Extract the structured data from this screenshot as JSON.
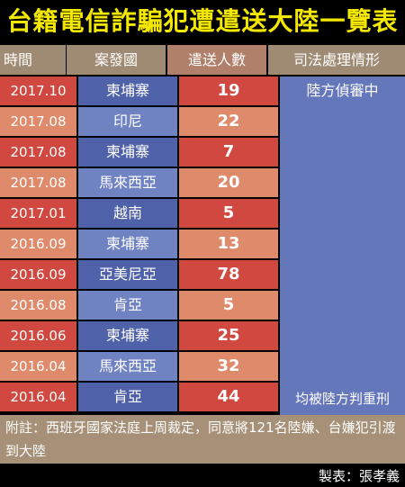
{
  "title": "台籍電信詐騙犯遭遣送大陸一覽表",
  "headers": [
    "時間",
    "案發國",
    "遣送人數",
    "司法處理情形"
  ],
  "rows": [
    {
      "date": "2017.10",
      "country": "柬埔寨",
      "count": "19"
    },
    {
      "date": "2017.08",
      "country": "印尼",
      "count": "22"
    },
    {
      "date": "2017.08",
      "country": "柬埔寨",
      "count": "7"
    },
    {
      "date": "2017.08",
      "country": "馬來西亞",
      "count": "20"
    },
    {
      "date": "2017.01",
      "country": "越南",
      "count": "5"
    },
    {
      "date": "2016.09",
      "country": "柬埔寨",
      "count": "13"
    },
    {
      "date": "2016.09",
      "country": "亞美尼亞",
      "count": "78"
    },
    {
      "date": "2016.08",
      "country": "肯亞",
      "count": "5"
    },
    {
      "date": "2016.06",
      "country": "柬埔寨",
      "count": "25"
    },
    {
      "date": "2016.04",
      "country": "馬來西亞",
      "count": "32"
    },
    {
      "date": "2016.04",
      "country": "肯亞",
      "count": "44"
    }
  ],
  "status": {
    "top": "陸方偵審中",
    "bottom": "均被陸方判重刑"
  },
  "note": "附註：西班牙國家法庭上周裁定，同意將121名陸嫌、台嫌犯引渡到大陸",
  "credit": "製表：張孝義",
  "colors": {
    "title_text": "#f5e800",
    "header_bg": "#9f8a73",
    "row_red": "#d0483f",
    "row_salmon": "#e08a6c",
    "row_blue": "#4f61a8",
    "row_lightblue": "#6f82c2",
    "status_bg": "#6577bb"
  }
}
